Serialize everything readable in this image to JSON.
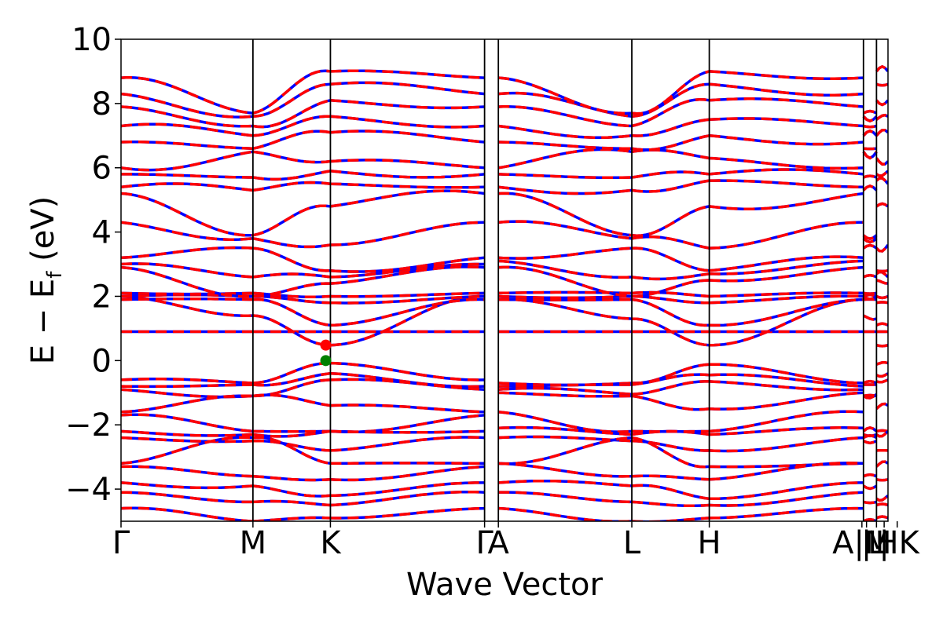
{
  "chart_data": {
    "type": "line",
    "title": "",
    "xlabel": "Wave Vector",
    "ylabel_main": "E − E",
    "ylabel_sub": "f",
    "ylabel_unit": " (eV)",
    "ylim": [
      -5,
      10
    ],
    "yticks": [
      -4,
      -2,
      0,
      2,
      4,
      6,
      8,
      10
    ],
    "ytick_labels": [
      "−4",
      "−2",
      "0",
      "2",
      "4",
      "6",
      "8",
      "10"
    ],
    "grid": false,
    "legend": "none",
    "kpath_total": 1.0,
    "high_symmetry_points": [
      {
        "label": "Γ",
        "x": 0.0
      },
      {
        "label": "M",
        "x": 0.172
      },
      {
        "label": "K",
        "x": 0.273
      },
      {
        "label": "Γ",
        "x": 0.474
      },
      {
        "label": "A",
        "x": 0.492
      },
      {
        "label": "L",
        "x": 0.666
      },
      {
        "label": "H",
        "x": 0.767
      },
      {
        "label": "A",
        "x": 0.968
      },
      {
        "label": "M",
        "x": 0.968
      },
      {
        "label": "L",
        "x": 0.985
      },
      {
        "label": "H",
        "x": 1.0
      },
      {
        "label": "K",
        "x": 1.0
      }
    ],
    "label_positions": [
      {
        "label": "Γ",
        "x": 0.0
      },
      {
        "label": "M",
        "x": 0.172
      },
      {
        "label": "K",
        "x": 0.273
      },
      {
        "label": "Γ",
        "x": 0.474
      },
      {
        "label": "A",
        "x": 0.492
      },
      {
        "label": "L",
        "x": 0.666
      },
      {
        "label": "H",
        "x": 0.767
      },
      {
        "label": "A|M",
        "x": 0.966
      },
      {
        "label": "|",
        "x": 0.972
      },
      {
        "label": "L",
        "x": 0.985
      },
      {
        "label": "|",
        "x": 0.995
      },
      {
        "label": "HK",
        "x": 1.012
      }
    ],
    "band_extrema": {
      "vbm": {
        "x": 0.267,
        "y": 0.0,
        "color": "#008000"
      },
      "cbm": {
        "x": 0.267,
        "y": 0.48,
        "color": "#ff0000"
      }
    },
    "series": [
      {
        "style": "solid",
        "color": "#0000ff"
      },
      {
        "style": "dashed",
        "color": "#ff0000"
      }
    ],
    "bands": [
      {
        "kind": "val",
        "G": -0.6,
        "M": -0.7,
        "K": -0.08,
        "A": -0.7,
        "L": -0.7,
        "H": -0.12,
        "w": 0.06
      },
      {
        "kind": "val",
        "G": -0.8,
        "M": -0.75,
        "K": -0.4,
        "A": -0.8,
        "L": -0.75,
        "H": -0.45,
        "w": 0.08
      },
      {
        "kind": "val",
        "G": -0.9,
        "M": -1.1,
        "K": -0.6,
        "A": -0.9,
        "L": -1.05,
        "H": -0.65,
        "w": 0.09
      },
      {
        "kind": "val",
        "G": -1.6,
        "M": -1.1,
        "K": -1.4,
        "A": -1.0,
        "L": -1.1,
        "H": -1.5,
        "w": 0.1
      },
      {
        "kind": "val",
        "G": -1.7,
        "M": -2.2,
        "K": -2.2,
        "A": -1.6,
        "L": -2.2,
        "H": -2.2,
        "w": 0.12
      },
      {
        "kind": "val",
        "G": -2.2,
        "M": -2.3,
        "K": -2.2,
        "A": -2.1,
        "L": -2.3,
        "H": -2.3,
        "w": 0.1
      },
      {
        "kind": "val",
        "G": -2.4,
        "M": -2.5,
        "K": -2.8,
        "A": -2.4,
        "L": -2.5,
        "H": -2.8,
        "w": 0.08
      },
      {
        "kind": "val",
        "G": -3.2,
        "M": -2.4,
        "K": -3.2,
        "A": -3.2,
        "L": -2.4,
        "H": -3.3,
        "w": 0.1
      },
      {
        "kind": "val",
        "G": -3.3,
        "M": -3.6,
        "K": -3.7,
        "A": -3.2,
        "L": -3.6,
        "H": -3.7,
        "w": 0.08
      },
      {
        "kind": "val",
        "G": -3.8,
        "M": -3.9,
        "K": -4.2,
        "A": -3.8,
        "L": -3.9,
        "H": -4.3,
        "w": 0.1
      },
      {
        "kind": "val",
        "G": -4.1,
        "M": -4.4,
        "K": -4.5,
        "A": -4.1,
        "L": -4.4,
        "H": -4.5,
        "w": 0.07
      },
      {
        "kind": "val",
        "G": -4.6,
        "M": -5.0,
        "K": -4.9,
        "A": -4.6,
        "L": -5.0,
        "H": -4.9,
        "w": 0.06
      },
      {
        "kind": "flat",
        "G": 0.9,
        "M": 0.9,
        "K": 0.9,
        "A": 0.9,
        "L": 0.9,
        "H": 0.9,
        "w": 0.0
      },
      {
        "kind": "con",
        "G": 2.0,
        "M": 1.4,
        "K": 0.48,
        "A": 1.9,
        "L": 1.3,
        "H": 0.48,
        "w": 0.05
      },
      {
        "kind": "con",
        "G": 1.9,
        "M": 1.9,
        "K": 1.1,
        "A": 1.9,
        "L": 1.9,
        "H": 1.1,
        "w": 0.06
      },
      {
        "kind": "con",
        "G": 2.0,
        "M": 2.0,
        "K": 1.8,
        "A": 2.0,
        "L": 2.0,
        "H": 1.8,
        "w": 0.05
      },
      {
        "kind": "con",
        "G": 2.1,
        "M": 2.1,
        "K": 2.0,
        "A": 2.1,
        "L": 2.1,
        "H": 2.0,
        "w": 0.05
      },
      {
        "kind": "con",
        "G": 2.9,
        "M": 2.0,
        "K": 2.4,
        "A": 2.9,
        "L": 2.0,
        "H": 2.5,
        "w": 0.1
      },
      {
        "kind": "con",
        "G": 3.0,
        "M": 2.6,
        "K": 2.6,
        "A": 3.1,
        "L": 2.6,
        "H": 2.7,
        "w": 0.1
      },
      {
        "kind": "con",
        "G": 3.2,
        "M": 3.5,
        "K": 2.8,
        "A": 3.2,
        "L": 3.5,
        "H": 2.8,
        "w": 0.12
      },
      {
        "kind": "con",
        "G": 4.3,
        "M": 3.8,
        "K": 3.6,
        "A": 4.3,
        "L": 3.8,
        "H": 3.5,
        "w": 0.15
      },
      {
        "kind": "con",
        "G": 5.2,
        "M": 3.9,
        "K": 4.8,
        "A": 5.2,
        "L": 3.9,
        "H": 4.8,
        "w": 0.2
      },
      {
        "kind": "con",
        "G": 5.4,
        "M": 5.3,
        "K": 5.5,
        "A": 5.4,
        "L": 5.3,
        "H": 5.6,
        "w": 0.15
      },
      {
        "kind": "con",
        "G": 5.8,
        "M": 5.7,
        "K": 5.9,
        "A": 5.8,
        "L": 5.7,
        "H": 5.8,
        "w": 0.15
      },
      {
        "kind": "con",
        "G": 6.0,
        "M": 6.5,
        "K": 6.2,
        "A": 6.0,
        "L": 6.5,
        "H": 6.3,
        "w": 0.2
      },
      {
        "kind": "con",
        "G": 6.8,
        "M": 6.6,
        "K": 7.1,
        "A": 6.8,
        "L": 6.6,
        "H": 7.0,
        "w": 0.15
      },
      {
        "kind": "con",
        "G": 7.3,
        "M": 7.0,
        "K": 7.6,
        "A": 7.3,
        "L": 7.0,
        "H": 7.5,
        "w": 0.15
      },
      {
        "kind": "con",
        "G": 7.9,
        "M": 7.3,
        "K": 8.1,
        "A": 7.9,
        "L": 7.3,
        "H": 8.1,
        "w": 0.15
      },
      {
        "kind": "con",
        "G": 8.3,
        "M": 7.6,
        "K": 8.6,
        "A": 8.3,
        "L": 7.6,
        "H": 8.6,
        "w": 0.15
      },
      {
        "kind": "con",
        "G": 8.8,
        "M": 7.7,
        "K": 9.0,
        "A": 8.8,
        "L": 7.7,
        "H": 9.0,
        "w": 0.15
      }
    ]
  }
}
